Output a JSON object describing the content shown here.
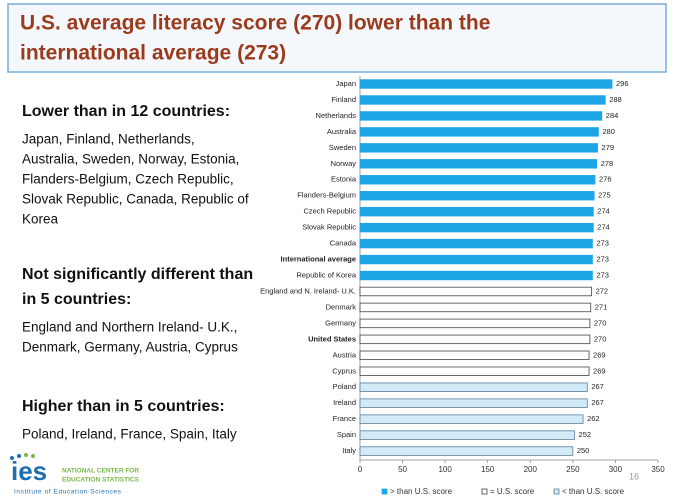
{
  "slide": {
    "title_lines": [
      "U.S. average literacy score (270) lower than the",
      "international average (273)"
    ],
    "sections": [
      {
        "heading_lines": [
          "Lower than in 12 countries:"
        ],
        "body_lines": [
          "Japan, Finland, Netherlands,",
          "Australia, Sweden, Norway, Estonia,",
          "Flanders-Belgium, Czech Republic,",
          "Slovak Republic, Canada, Republic of",
          "Korea"
        ]
      },
      {
        "heading_lines": [
          "Not significantly different  than",
          "in 5 countries:"
        ],
        "body_lines": [
          "England and Northern Ireland- U.K.,",
          "Denmark, Germany, Austria, Cyprus"
        ]
      },
      {
        "heading_lines": [
          "Higher than in 5 countries:"
        ],
        "body_lines": [
          "Poland, Ireland, France, Spain, Italy"
        ]
      }
    ],
    "page_number": "16",
    "logo": {
      "mark": "ies",
      "line1": "NATIONAL CENTER FOR",
      "line2": "EDUCATION STATISTICS",
      "line3": "Institute of Education Sciences"
    }
  },
  "chart_data": {
    "type": "bar",
    "orientation": "horizontal",
    "categories": [
      "Japan",
      "Finland",
      "Netherlands",
      "Australia",
      "Sweden",
      "Norway",
      "Estonia",
      "Flanders-Belgium",
      "Czech Republic",
      "Slovak Republic",
      "Canada",
      "International average",
      "Republic of Korea",
      "England and N. Ireland- U.K.",
      "Denmark",
      "Germany",
      "United States",
      "Austria",
      "Cyprus",
      "Poland",
      "Ireland",
      "France",
      "Spain",
      "Italy"
    ],
    "values": [
      296,
      288,
      284,
      280,
      279,
      278,
      276,
      275,
      274,
      274,
      273,
      273,
      273,
      272,
      271,
      270,
      270,
      269,
      269,
      267,
      267,
      262,
      252,
      250
    ],
    "groups": [
      0,
      0,
      0,
      0,
      0,
      0,
      0,
      0,
      0,
      0,
      0,
      0,
      0,
      1,
      1,
      1,
      1,
      1,
      1,
      2,
      2,
      2,
      2,
      2
    ],
    "bold_categories": [
      11,
      16
    ],
    "legend": [
      {
        "name": "> than U.S. score",
        "color": "#1ea5e6",
        "stroke": "#1ea5e6"
      },
      {
        "name": "= U.S. score",
        "color": "#ffffff",
        "stroke": "#444444"
      },
      {
        "name": "< than U.S. score",
        "color": "#d3eaf7",
        "stroke": "#5a7f99"
      }
    ],
    "xlim": [
      0,
      350
    ],
    "xticks": [
      0,
      50,
      100,
      150,
      200,
      250,
      300,
      350
    ]
  }
}
